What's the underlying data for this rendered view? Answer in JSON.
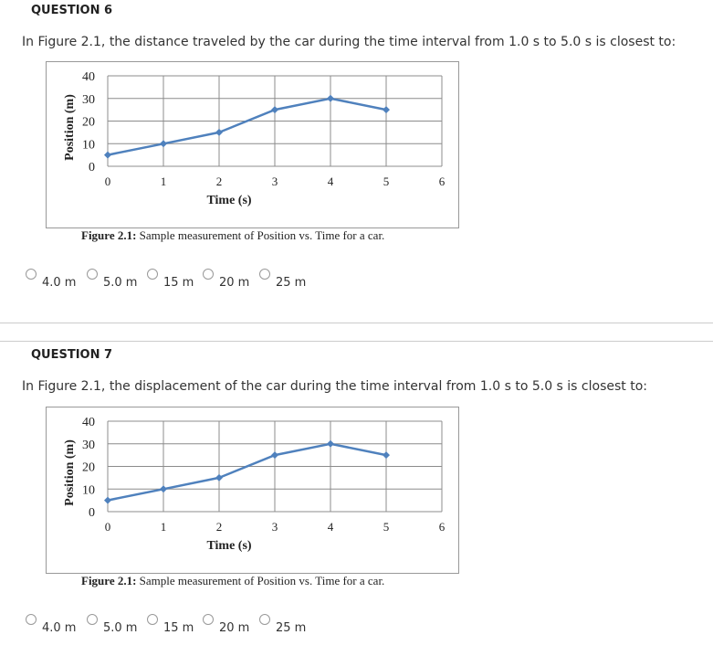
{
  "questions": [
    {
      "title": "QUESTION 6",
      "text": "In Figure 2.1, the distance traveled by the car during the time interval from 1.0 s to 5.0 s is closest to:",
      "caption_bold": "Figure 2.1:",
      "caption_text": "Sample measurement of Position vs. Time for a car.",
      "choices": [
        "4.0 m",
        "5.0 m",
        "15 m",
        "20 m",
        "25 m"
      ]
    },
    {
      "title": "QUESTION 7",
      "text": "In Figure 2.1, the displacement of the car during the time interval from 1.0 s to 5.0 s is closest to:",
      "caption_bold": "Figure 2.1:",
      "caption_text": "Sample measurement of Position vs. Time for a car.",
      "choices": [
        "4.0 m",
        "5.0 m",
        "15 m",
        "20 m",
        "25 m"
      ]
    }
  ],
  "chart_data": [
    {
      "type": "line",
      "xlabel": "Time (s)",
      "ylabel": "Position (m)",
      "x_ticks": [
        "0",
        "1",
        "2",
        "3",
        "4",
        "5",
        "6"
      ],
      "y_ticks": [
        "0",
        "10",
        "20",
        "30",
        "40"
      ],
      "xlim": [
        0,
        6
      ],
      "ylim": [
        0,
        40
      ],
      "grid": true,
      "series": [
        {
          "x": [
            0,
            1,
            2,
            3,
            4,
            5
          ],
          "y": [
            5,
            10,
            15,
            25,
            30,
            25
          ],
          "color": "#4f81bd"
        }
      ]
    },
    {
      "type": "line",
      "xlabel": "Time (s)",
      "ylabel": "Position (m)",
      "x_ticks": [
        "0",
        "1",
        "2",
        "3",
        "4",
        "5",
        "6"
      ],
      "y_ticks": [
        "0",
        "10",
        "20",
        "30",
        "40"
      ],
      "xlim": [
        0,
        6
      ],
      "ylim": [
        0,
        40
      ],
      "grid": true,
      "series": [
        {
          "x": [
            0,
            1,
            2,
            3,
            4,
            5
          ],
          "y": [
            5,
            10,
            15,
            25,
            30,
            25
          ],
          "color": "#4f81bd"
        }
      ]
    }
  ]
}
